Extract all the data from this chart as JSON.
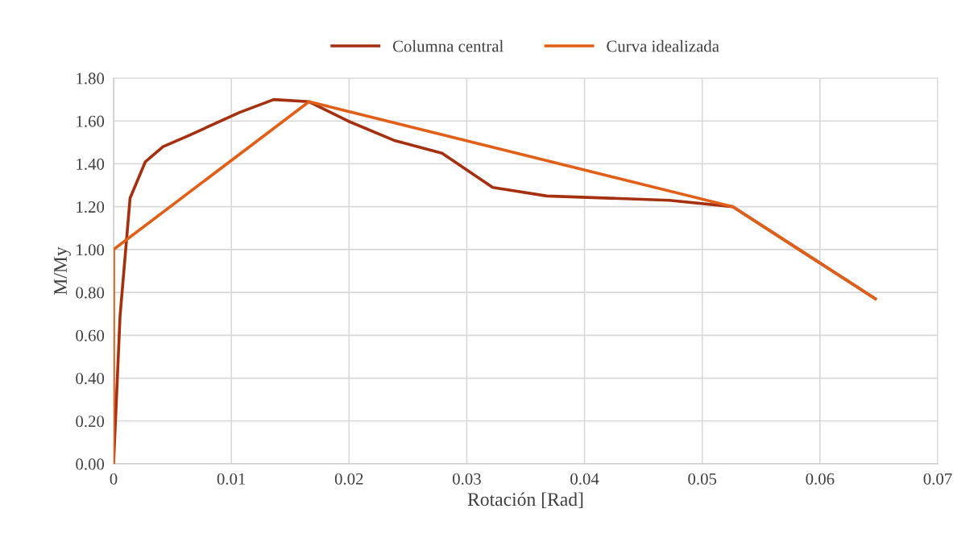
{
  "chart_data": {
    "type": "line",
    "xlabel": "Rotación [Rad]",
    "ylabel": "M/My",
    "xlim": [
      0,
      0.07
    ],
    "xticks": [
      {
        "value": 0,
        "label": "0"
      },
      0.01,
      0.02,
      0.03,
      0.04,
      0.05,
      0.06,
      0.07
    ],
    "ylim": [
      0,
      1.8
    ],
    "yticks": [
      {
        "value": 0,
        "label": "0.00"
      },
      {
        "value": 0.2,
        "label": "0.20"
      },
      {
        "value": 0.4,
        "label": "0.40"
      },
      {
        "value": 0.6,
        "label": "0.60"
      },
      {
        "value": 0.8,
        "label": "0.80"
      },
      {
        "value": 1.0,
        "label": "1.00"
      },
      {
        "value": 1.2,
        "label": "1.20"
      },
      {
        "value": 1.4,
        "label": "1.40"
      },
      {
        "value": 1.6,
        "label": "1.60"
      },
      {
        "value": 1.8,
        "label": "1.80"
      }
    ],
    "grid": true,
    "legend": "top",
    "marker": "none",
    "line_style": "solid",
    "series": [
      {
        "name": "Columna central",
        "color": "#a5300f",
        "x": [
          0,
          0.00055,
          0.0014,
          0.0027,
          0.0042,
          0.0063,
          0.0107,
          0.0136,
          0.0166,
          0.0199,
          0.0238,
          0.0279,
          0.0322,
          0.0368,
          0.0472,
          0.0526,
          0.0647
        ],
        "values": [
          0,
          0.69,
          1.24,
          1.41,
          1.48,
          1.53,
          1.64,
          1.7,
          1.69,
          1.6,
          1.51,
          1.45,
          1.29,
          1.25,
          1.23,
          1.2,
          0.77
        ]
      },
      {
        "name": "Curva idealizada",
        "color": "#e0601a",
        "x": [
          0,
          0,
          0.0166,
          0.0526,
          0.0647
        ],
        "values": [
          0,
          1.0,
          1.69,
          1.2,
          0.77
        ]
      }
    ]
  }
}
